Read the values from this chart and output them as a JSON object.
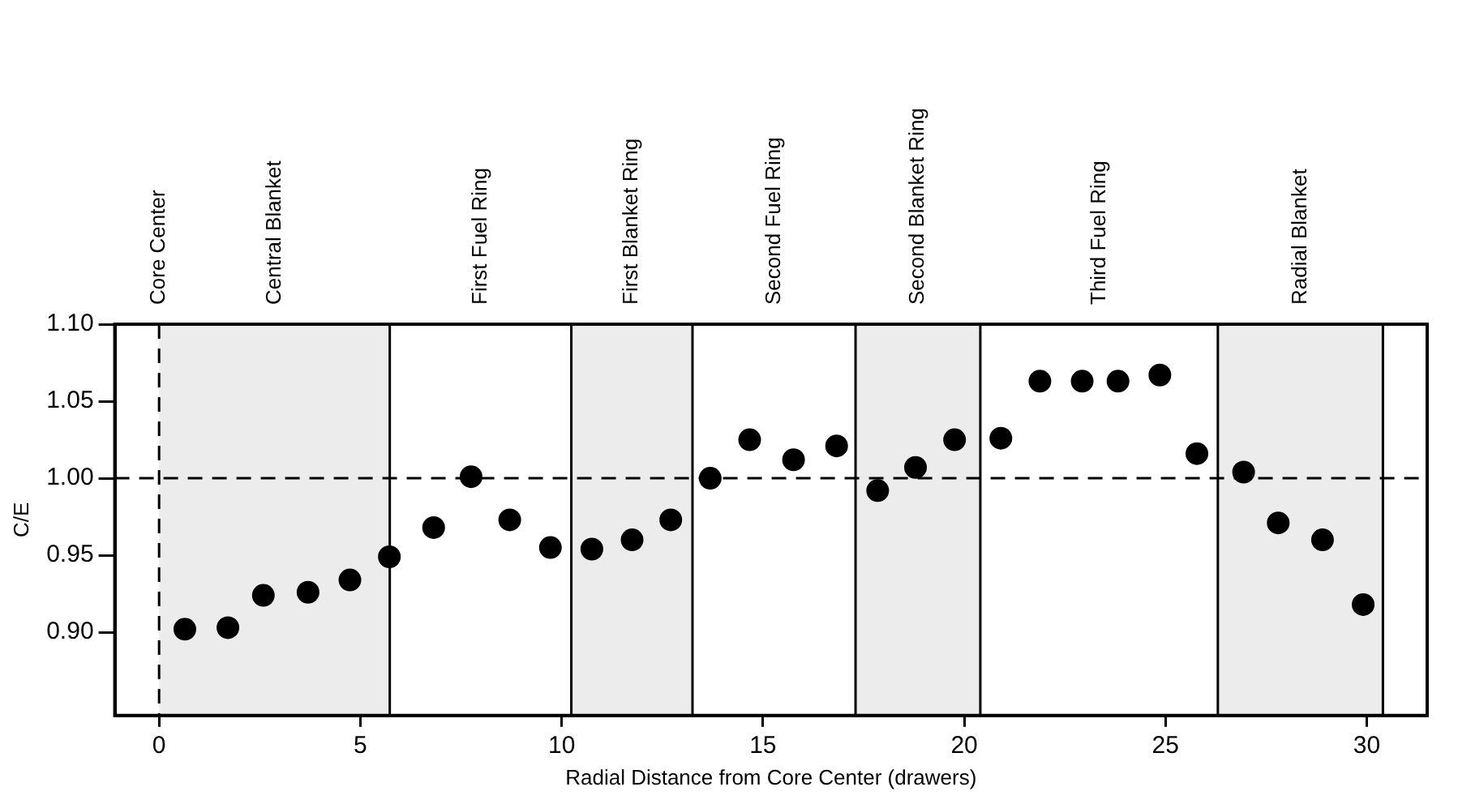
{
  "chart_data": {
    "type": "scatter",
    "xlabel": "Radial Distance from Core Center (drawers)",
    "ylabel": "C/E",
    "x": [
      0.64,
      1.71,
      2.59,
      3.7,
      4.74,
      5.72,
      6.82,
      7.75,
      8.71,
      9.72,
      10.75,
      11.75,
      12.71,
      13.69,
      14.67,
      15.76,
      16.83,
      17.85,
      18.79,
      19.76,
      20.91,
      21.88,
      22.93,
      23.82,
      24.86,
      25.78,
      26.94,
      27.8,
      28.9,
      29.91
    ],
    "series": [
      {
        "color": "#000000",
        "values": [
          0.902,
          0.903,
          0.924,
          0.926,
          0.934,
          0.949,
          0.968,
          1.001,
          0.973,
          0.955,
          0.954,
          0.96,
          0.973,
          1.0,
          1.025,
          1.012,
          1.021,
          0.992,
          1.007,
          1.025,
          1.026,
          1.063,
          1.063,
          1.063,
          1.067,
          1.016,
          1.004,
          0.971,
          0.96,
          0.918
        ]
      }
    ],
    "xlim": [
      -1.1,
      31.5
    ],
    "xticks": [
      0,
      5,
      10,
      15,
      20,
      25,
      30
    ],
    "ylim": [
      0.846,
      1.1
    ],
    "yticks": [
      {
        "value": 0.9,
        "label": "0.90"
      },
      {
        "value": 0.95,
        "label": "0.95"
      },
      {
        "value": 1.0,
        "label": "1.00"
      },
      {
        "value": 1.05,
        "label": "1.05"
      },
      {
        "value": 1.1,
        "label": "1.10"
      }
    ],
    "ref_lines": [
      {
        "axis": "y",
        "value": 1.0,
        "line_style": "dashed"
      },
      {
        "axis": "x",
        "value": 0,
        "label": "Core Center",
        "line_style": "dashed"
      }
    ],
    "bands": [
      {
        "axis": "x",
        "from": 0,
        "to": 5.73,
        "label": "Central Blanket",
        "color": "#ececec"
      },
      {
        "axis": "x",
        "from": 10.24,
        "to": 13.25,
        "label": "First Blanket Ring",
        "color": "#ececec"
      },
      {
        "axis": "x",
        "from": 17.3,
        "to": 20.4,
        "label": "Second Blanket Ring",
        "color": "#ececec"
      },
      {
        "axis": "x",
        "from": 26.3,
        "to": 30.4,
        "label": "Radial Blanket",
        "color": "#ececec"
      }
    ],
    "annotations": [
      "First Fuel Ring",
      "Second Fuel Ring",
      "Third Fuel Ring"
    ],
    "grid": false,
    "legend": false,
    "marker": "circle"
  }
}
